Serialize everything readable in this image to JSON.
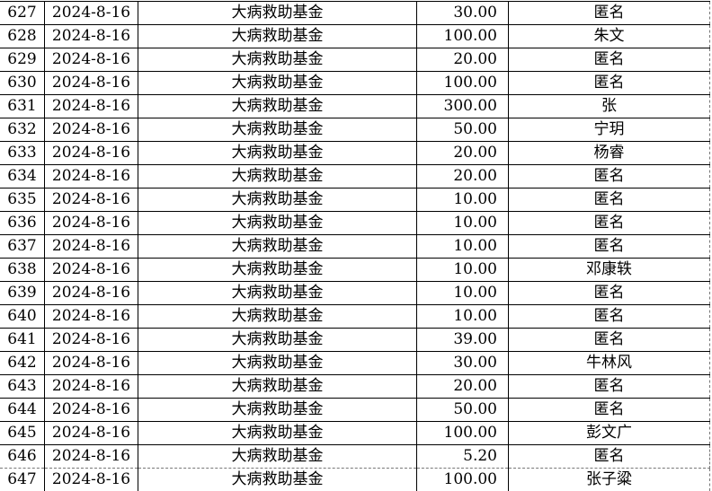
{
  "rows": [
    {
      "no": "627",
      "date": "2024-8-16",
      "fund": "大病救助基金",
      "amount": "30.00",
      "donor": "匿名"
    },
    {
      "no": "628",
      "date": "2024-8-16",
      "fund": "大病救助基金",
      "amount": "100.00",
      "donor": "朱文"
    },
    {
      "no": "629",
      "date": "2024-8-16",
      "fund": "大病救助基金",
      "amount": "20.00",
      "donor": "匿名"
    },
    {
      "no": "630",
      "date": "2024-8-16",
      "fund": "大病救助基金",
      "amount": "100.00",
      "donor": "匿名"
    },
    {
      "no": "631",
      "date": "2024-8-16",
      "fund": "大病救助基金",
      "amount": "300.00",
      "donor": "张"
    },
    {
      "no": "632",
      "date": "2024-8-16",
      "fund": "大病救助基金",
      "amount": "50.00",
      "donor": "宁玥"
    },
    {
      "no": "633",
      "date": "2024-8-16",
      "fund": "大病救助基金",
      "amount": "20.00",
      "donor": "杨睿"
    },
    {
      "no": "634",
      "date": "2024-8-16",
      "fund": "大病救助基金",
      "amount": "20.00",
      "donor": "匿名"
    },
    {
      "no": "635",
      "date": "2024-8-16",
      "fund": "大病救助基金",
      "amount": "10.00",
      "donor": "匿名"
    },
    {
      "no": "636",
      "date": "2024-8-16",
      "fund": "大病救助基金",
      "amount": "10.00",
      "donor": "匿名"
    },
    {
      "no": "637",
      "date": "2024-8-16",
      "fund": "大病救助基金",
      "amount": "10.00",
      "donor": "匿名"
    },
    {
      "no": "638",
      "date": "2024-8-16",
      "fund": "大病救助基金",
      "amount": "10.00",
      "donor": "邓康轶"
    },
    {
      "no": "639",
      "date": "2024-8-16",
      "fund": "大病救助基金",
      "amount": "10.00",
      "donor": "匿名"
    },
    {
      "no": "640",
      "date": "2024-8-16",
      "fund": "大病救助基金",
      "amount": "10.00",
      "donor": "匿名"
    },
    {
      "no": "641",
      "date": "2024-8-16",
      "fund": "大病救助基金",
      "amount": "39.00",
      "donor": "匿名"
    },
    {
      "no": "642",
      "date": "2024-8-16",
      "fund": "大病救助基金",
      "amount": "30.00",
      "donor": "牛林风"
    },
    {
      "no": "643",
      "date": "2024-8-16",
      "fund": "大病救助基金",
      "amount": "20.00",
      "donor": "匿名"
    },
    {
      "no": "644",
      "date": "2024-8-16",
      "fund": "大病救助基金",
      "amount": "50.00",
      "donor": "匿名"
    },
    {
      "no": "645",
      "date": "2024-8-16",
      "fund": "大病救助基金",
      "amount": "100.00",
      "donor": "彭文广"
    },
    {
      "no": "646",
      "date": "2024-8-16",
      "fund": "大病救助基金",
      "amount": "5.20",
      "donor": "匿名"
    },
    {
      "no": "647",
      "date": "2024-8-16",
      "fund": "大病救助基金",
      "amount": "100.00",
      "donor": "张子粱"
    }
  ]
}
